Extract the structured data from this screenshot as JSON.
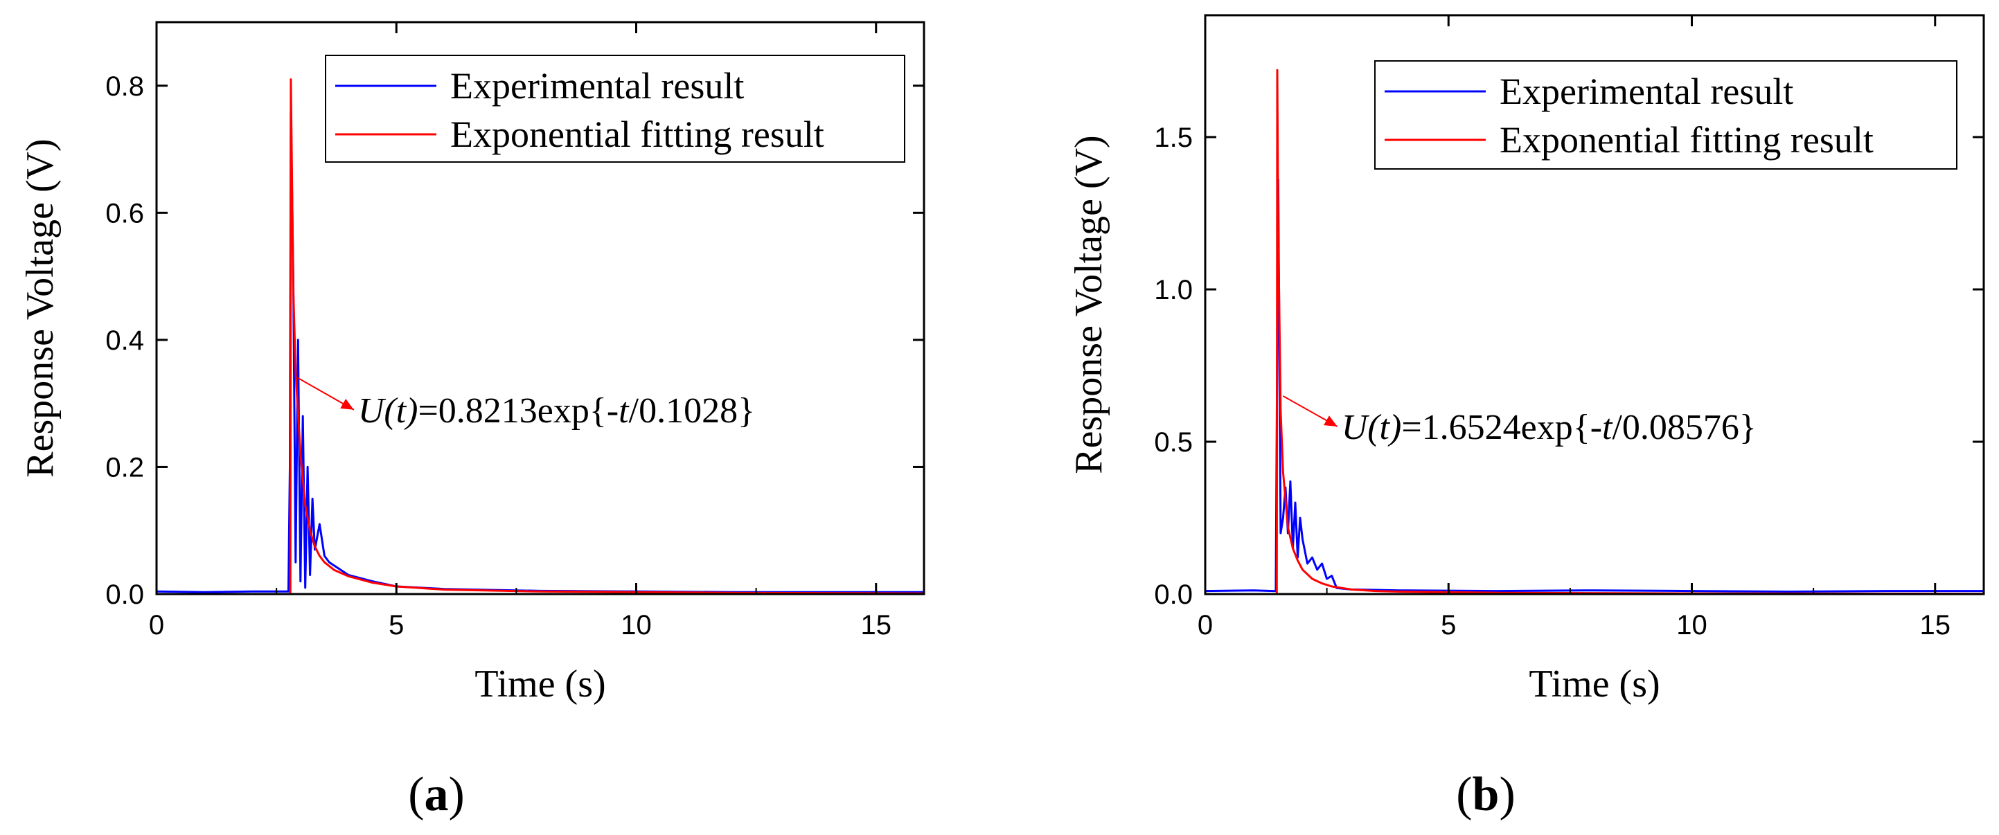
{
  "colors": {
    "experimental": "#0000ff",
    "fit": "#ff0000",
    "axes": "#000000"
  },
  "chart_data": [
    {
      "type": "line",
      "panel_label": "(a)",
      "panel_label_parts": [
        "(",
        "a",
        ")"
      ],
      "xlabel": "Time (s)",
      "ylabel": "Response Voltage (V)",
      "xlim": [
        0,
        16
      ],
      "ylim": [
        0,
        0.9
      ],
      "x_ticks": [
        0,
        5,
        10,
        15
      ],
      "x_tick_labels": [
        "0",
        "5",
        "10",
        "15"
      ],
      "y_ticks": [
        0.0,
        0.2,
        0.4,
        0.6,
        0.8
      ],
      "y_tick_labels": [
        "0.0",
        "0.2",
        "0.4",
        "0.6",
        "0.8"
      ],
      "grid": false,
      "legend_position": "top-right",
      "series": [
        {
          "name": "Experimental result",
          "color": "#0000ff",
          "x": [
            0,
            1,
            2,
            2.6,
            2.75,
            2.78,
            2.8,
            2.85,
            2.9,
            2.95,
            3.0,
            3.05,
            3.1,
            3.15,
            3.2,
            3.25,
            3.3,
            3.4,
            3.5,
            3.6,
            3.8,
            4.0,
            4.5,
            5,
            6,
            8,
            10,
            12,
            14,
            16
          ],
          "y": [
            0.004,
            0.003,
            0.004,
            0.004,
            0.004,
            0.2,
            0.76,
            0.5,
            0.05,
            0.4,
            0.02,
            0.28,
            0.01,
            0.2,
            0.03,
            0.15,
            0.07,
            0.11,
            0.06,
            0.05,
            0.04,
            0.03,
            0.02,
            0.012,
            0.008,
            0.005,
            0.004,
            0.003,
            0.003,
            0.003
          ]
        },
        {
          "name": "Exponential fitting result",
          "color": "#ff0000",
          "fit": {
            "amplitude": 0.8213,
            "tau": 0.1028,
            "onset": 2.8
          },
          "x": [
            0,
            2.79,
            2.8,
            2.85,
            2.9,
            3.0,
            3.1,
            3.2,
            3.3,
            3.4,
            3.5,
            3.7,
            4.0,
            4.5,
            5.0,
            6.0,
            8.0,
            10.0,
            12.0,
            16.0
          ],
          "y": [
            0.0,
            0.0,
            0.81,
            0.48,
            0.35,
            0.22,
            0.14,
            0.1,
            0.075,
            0.06,
            0.05,
            0.038,
            0.028,
            0.018,
            0.012,
            0.007,
            0.004,
            0.003,
            0.002,
            0.001
          ]
        }
      ],
      "annotation": {
        "prefix": "U(t)",
        "body": "=0.8213exp{-",
        "var": "t",
        "suffix": "/0.1028}",
        "arrow_to": [
          2.95,
          0.34
        ],
        "text_at": [
          4.2,
          0.29
        ]
      }
    },
    {
      "type": "line",
      "panel_label": "(b)",
      "panel_label_parts": [
        "(",
        "b",
        ")"
      ],
      "xlabel": "Time (s)",
      "ylabel": "Response Voltage (V)",
      "xlim": [
        0,
        16
      ],
      "ylim": [
        0,
        1.9
      ],
      "x_ticks": [
        0,
        5,
        10,
        15
      ],
      "x_tick_labels": [
        "0",
        "5",
        "10",
        "15"
      ],
      "y_ticks": [
        0.0,
        0.5,
        1.0,
        1.5
      ],
      "y_tick_labels": [
        "0.0",
        "0.5",
        "1.0",
        "1.5"
      ],
      "grid": false,
      "legend_position": "top-right",
      "series": [
        {
          "name": "Experimental result",
          "color": "#0000ff",
          "x": [
            0,
            1,
            1.4,
            1.45,
            1.5,
            1.55,
            1.6,
            1.65,
            1.7,
            1.75,
            1.8,
            1.85,
            1.9,
            1.95,
            2.0,
            2.1,
            2.2,
            2.3,
            2.4,
            2.5,
            2.6,
            2.7,
            3.0,
            4,
            6,
            8,
            10,
            12,
            14,
            16
          ],
          "y": [
            0.01,
            0.012,
            0.01,
            0.01,
            1.36,
            0.2,
            0.25,
            0.35,
            0.2,
            0.37,
            0.15,
            0.3,
            0.12,
            0.25,
            0.18,
            0.1,
            0.12,
            0.08,
            0.1,
            0.05,
            0.06,
            0.02,
            0.015,
            0.012,
            0.01,
            0.012,
            0.01,
            0.008,
            0.01,
            0.01
          ]
        },
        {
          "name": "Exponential fitting result",
          "color": "#ff0000",
          "fit": {
            "amplitude": 1.6524,
            "tau": 0.08576,
            "onset": 1.48
          },
          "x": [
            0,
            1.47,
            1.48,
            1.5,
            1.55,
            1.6,
            1.7,
            1.8,
            1.9,
            2.0,
            2.2,
            2.4,
            2.6,
            3.0,
            3.5,
            4.0,
            6.0,
            10.0,
            16.0
          ],
          "y": [
            0.0,
            0.0,
            1.72,
            1.2,
            0.6,
            0.4,
            0.22,
            0.15,
            0.11,
            0.08,
            0.05,
            0.035,
            0.025,
            0.015,
            0.01,
            0.008,
            0.004,
            0.002,
            0.001
          ]
        }
      ],
      "annotation": {
        "prefix": "U(t)",
        "body": "=1.6524exp{-",
        "var": "t",
        "suffix": "/0.08576}",
        "arrow_to": [
          1.6,
          0.65
        ],
        "text_at": [
          2.8,
          0.55
        ]
      }
    }
  ]
}
